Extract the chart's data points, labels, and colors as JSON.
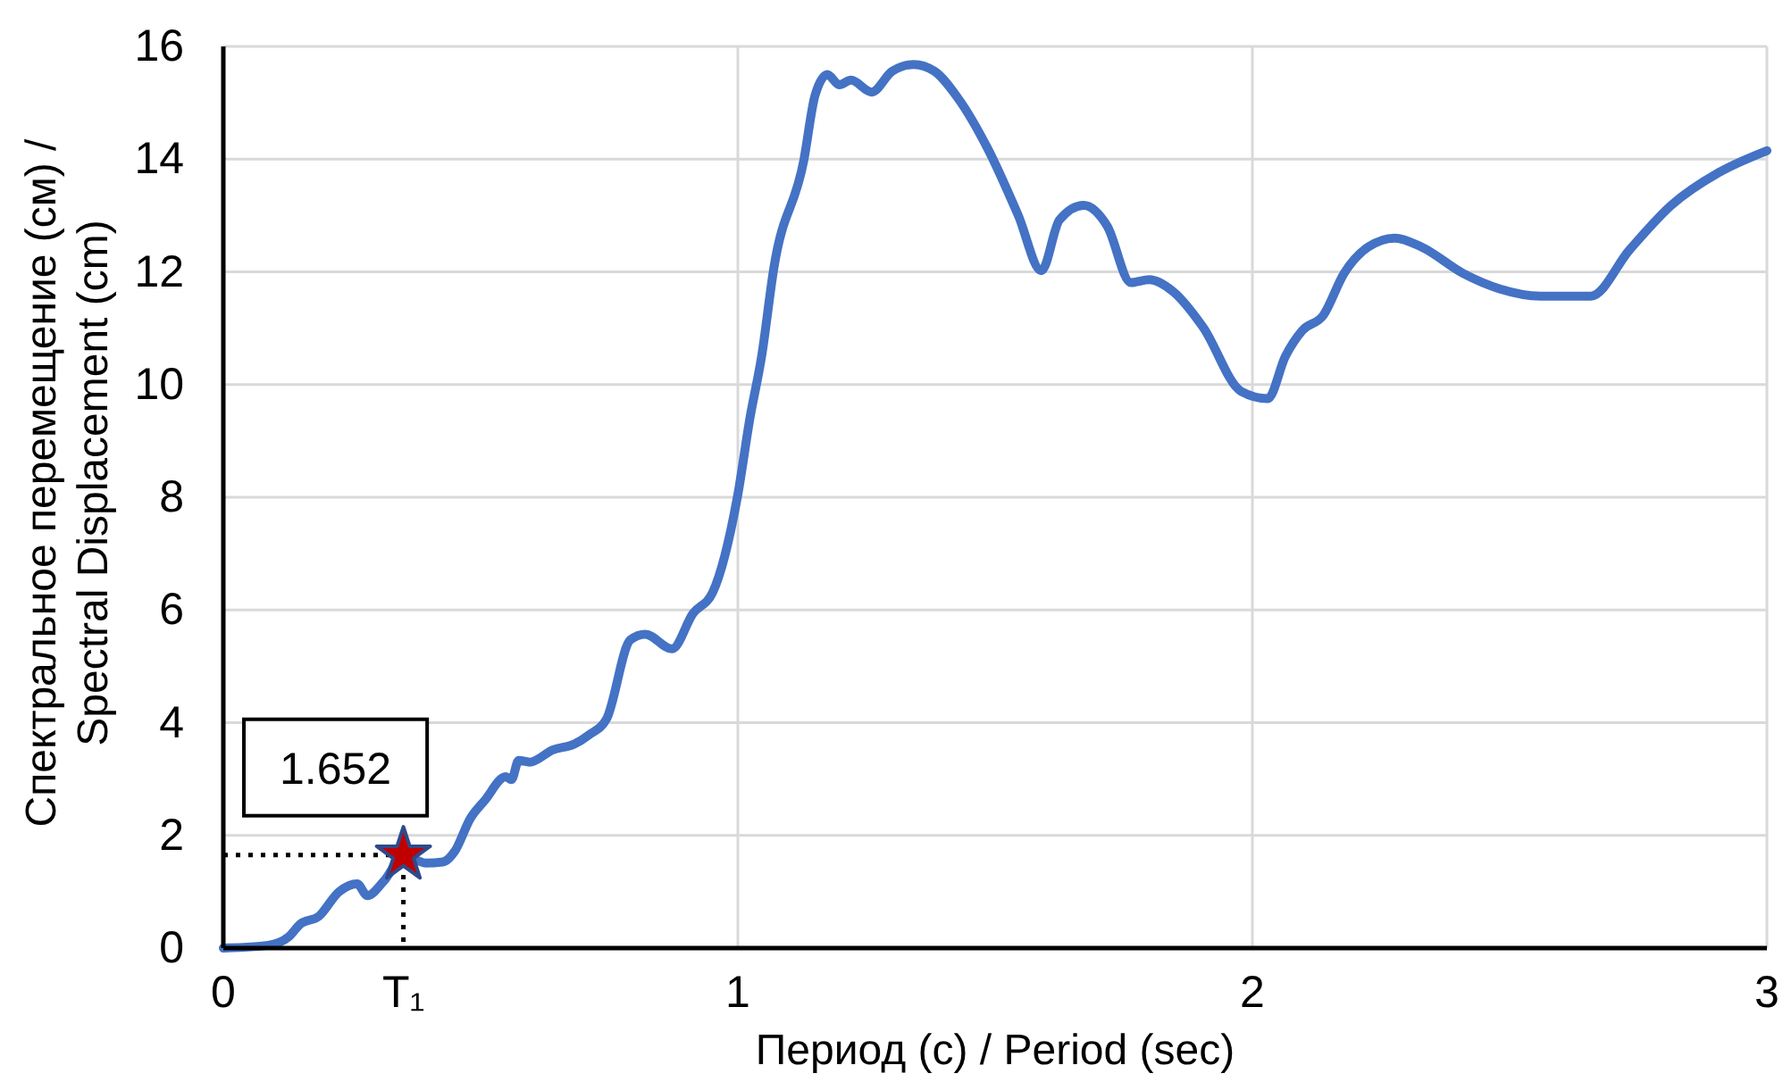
{
  "chart_data": {
    "type": "line",
    "xlabel": "Период (c) / Period (sec)",
    "ylabel": "Спектральное перемещение (см) / Spectral Displacement (cm)",
    "xlim": [
      0,
      3
    ],
    "ylim": [
      0,
      16
    ],
    "xticks": [
      0,
      {
        "value": 0.35,
        "label": "T₁"
      },
      1,
      2,
      3
    ],
    "yticks": [
      0,
      2,
      4,
      6,
      8,
      10,
      12,
      14,
      16
    ],
    "grid": true,
    "series": [
      {
        "color": "#4472c4",
        "x": [
          0,
          0.087,
          0.127,
          0.15,
          0.185,
          0.225,
          0.26,
          0.28,
          0.312,
          0.352,
          0.393,
          0.427,
          0.45,
          0.48,
          0.508,
          0.549,
          0.56,
          0.574,
          0.595,
          0.641,
          0.682,
          0.71,
          0.745,
          0.791,
          0.82,
          0.872,
          0.913,
          0.951,
          0.999,
          1.024,
          1.046,
          1.07,
          1.128,
          1.15,
          1.174,
          1.197,
          1.22,
          1.26,
          1.3,
          1.342,
          1.382,
          1.428,
          1.486,
          1.545,
          1.59,
          1.625,
          1.672,
          1.718,
          1.764,
          1.8,
          1.846,
          1.904,
          1.978,
          2.03,
          2.064,
          2.097,
          2.138,
          2.178,
          2.225,
          2.277,
          2.329,
          2.41,
          2.48,
          2.56,
          2.658,
          2.733,
          2.814,
          2.906,
          3.0
        ],
        "values": [
          0,
          0.05,
          0.2,
          0.43,
          0.56,
          1.0,
          1.14,
          0.93,
          1.19,
          1.65,
          1.51,
          1.53,
          1.72,
          2.3,
          2.62,
          3.04,
          2.99,
          3.33,
          3.3,
          3.52,
          3.62,
          3.78,
          4.07,
          5.47,
          5.57,
          5.31,
          5.94,
          6.31,
          8.0,
          9.43,
          10.49,
          12.07,
          13.97,
          15.13,
          15.5,
          15.32,
          15.4,
          15.19,
          15.56,
          15.68,
          15.56,
          15.08,
          14.18,
          13.0,
          12.02,
          12.92,
          13.18,
          12.81,
          11.81,
          11.86,
          11.65,
          11.02,
          9.88,
          9.75,
          10.5,
          10.96,
          11.23,
          11.97,
          12.44,
          12.6,
          12.44,
          11.97,
          11.7,
          11.57,
          11.57,
          12.39,
          13.18,
          13.76,
          14.15
        ]
      },
      {
        "type": "line",
        "line_style": "dotted",
        "color": "#000000",
        "x": [
          0,
          0.35,
          0.35
        ],
        "values": [
          1.652,
          1.652,
          0
        ]
      },
      {
        "type": "scatter",
        "marker": "star",
        "color": "#c00000",
        "x": [
          0.35
        ],
        "values": [
          1.652
        ]
      }
    ],
    "annotations": [
      {
        "text": "1.652",
        "x": 0.35,
        "y": 1.652
      }
    ]
  }
}
